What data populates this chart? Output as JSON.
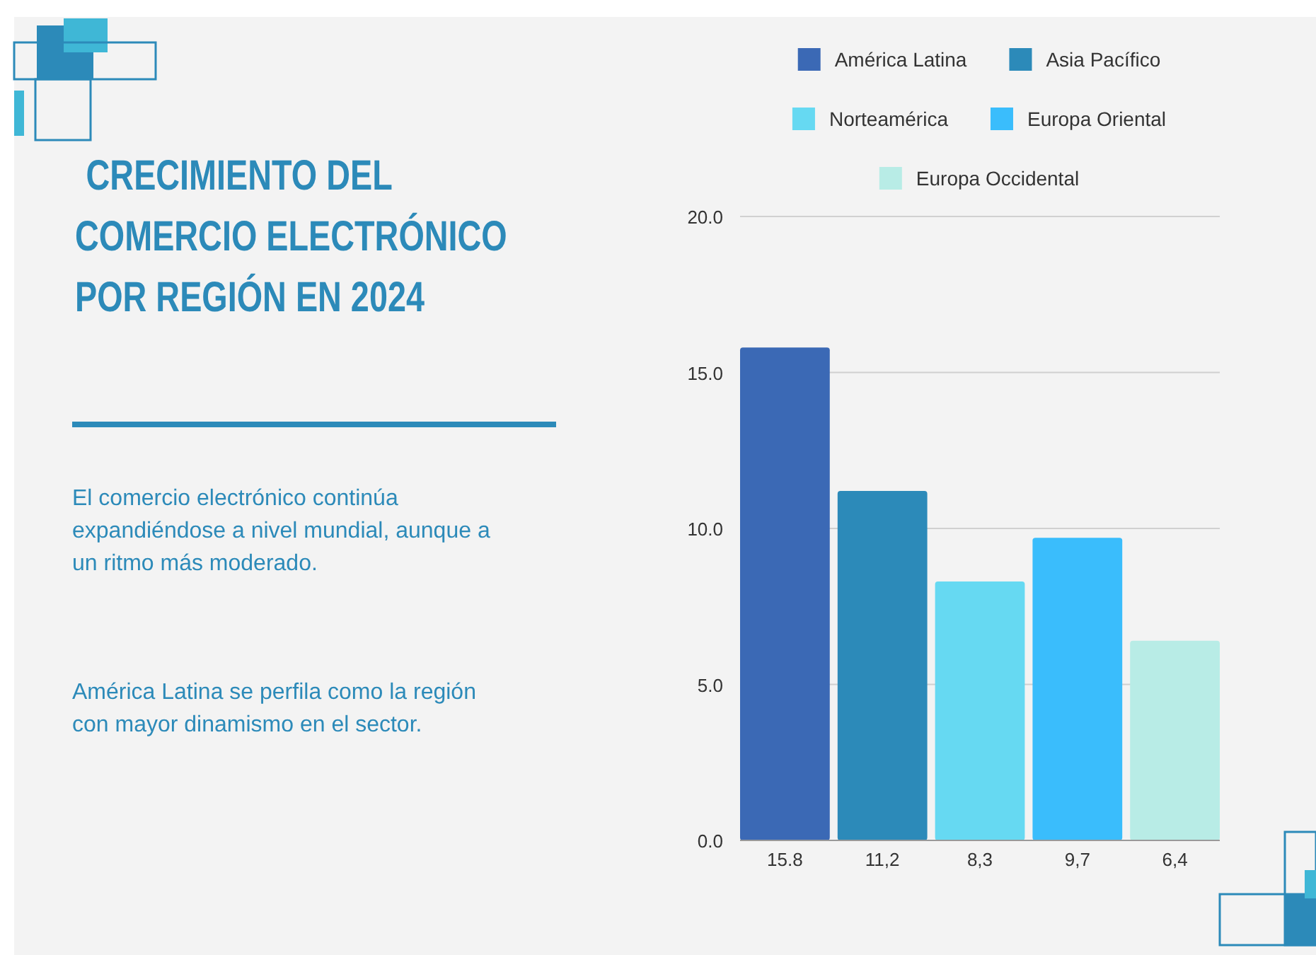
{
  "chart_data": {
    "type": "bar",
    "title": "CRECIMIENTO DEL COMERCIO ELECTRÓNICO POR REGIÓN EN 2024",
    "annotations": [
      "El comercio electrónico continúa expandiéndose a nivel mundial, aunque a un ritmo más moderado.",
      "América Latina se perfila como la región con mayor dinamismo en el sector."
    ],
    "categories": [
      null
    ],
    "series": [
      {
        "name": "América Latina",
        "color": "#3b69b5",
        "values": [
          15.8
        ],
        "value_labels": [
          "15.8"
        ]
      },
      {
        "name": "Asia Pacífico",
        "color": "#2c8ab9",
        "values": [
          11.2
        ],
        "value_labels": [
          "11,2"
        ]
      },
      {
        "name": "Norteamérica",
        "color": "#66d9f2",
        "values": [
          8.3
        ],
        "value_labels": [
          "8,3"
        ]
      },
      {
        "name": "Europa Oriental",
        "color": "#3abdfc",
        "values": [
          9.7
        ],
        "value_labels": [
          "9,7"
        ]
      },
      {
        "name": "Europa Occidental",
        "color": "#b8ece6",
        "values": [
          6.4
        ],
        "value_labels": [
          "6,4"
        ]
      }
    ],
    "ylim": [
      0,
      20
    ],
    "yticks": [
      {
        "value": 0,
        "label": "0.0"
      },
      {
        "value": 5,
        "label": "5.0"
      },
      {
        "value": 10,
        "label": "10.0"
      },
      {
        "value": 15,
        "label": "15.0"
      },
      {
        "value": 20,
        "label": "20.0"
      }
    ],
    "grid": "y",
    "legend": "top"
  }
}
